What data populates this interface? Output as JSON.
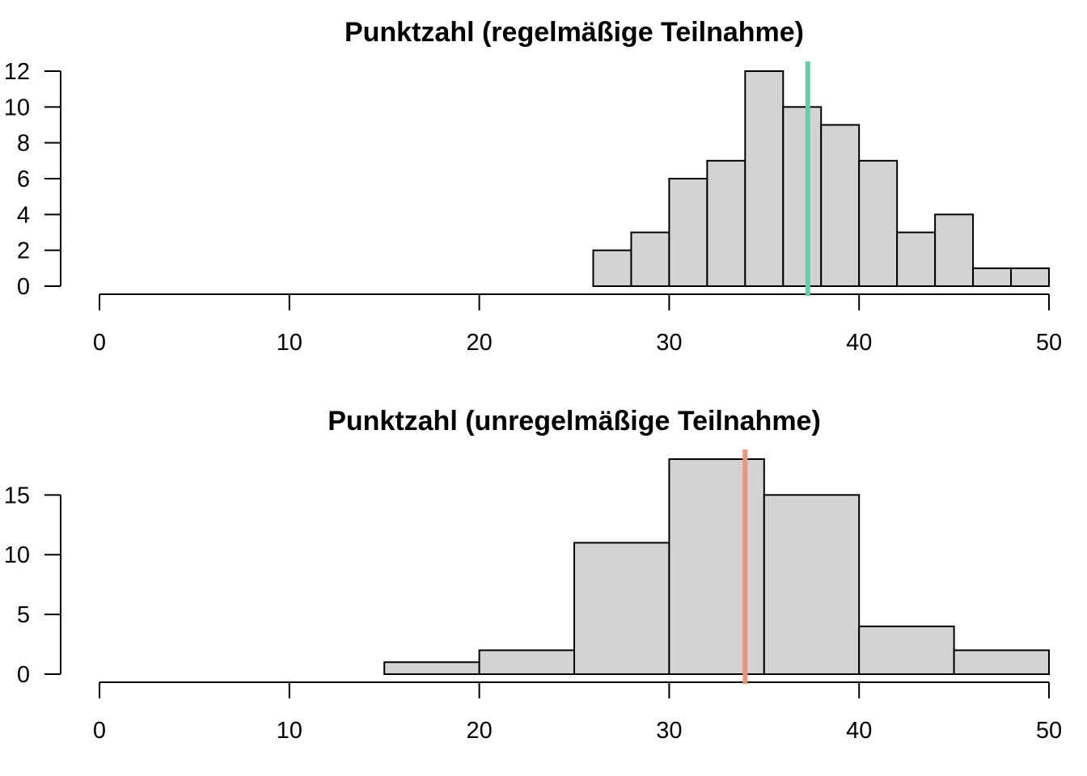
{
  "chart_data": [
    {
      "type": "histogram",
      "title": "Punktzahl (regelmäßige Teilnahme)",
      "xlim": [
        0,
        50
      ],
      "ylim": [
        0,
        12
      ],
      "x_ticks": [
        0,
        10,
        20,
        30,
        40,
        50
      ],
      "y_ticks": [
        0,
        2,
        4,
        6,
        8,
        10,
        12
      ],
      "bins": [
        {
          "start": 26,
          "end": 28,
          "count": 2
        },
        {
          "start": 28,
          "end": 30,
          "count": 3
        },
        {
          "start": 30,
          "end": 32,
          "count": 6
        },
        {
          "start": 32,
          "end": 34,
          "count": 7
        },
        {
          "start": 34,
          "end": 36,
          "count": 12
        },
        {
          "start": 36,
          "end": 38,
          "count": 10
        },
        {
          "start": 38,
          "end": 40,
          "count": 9
        },
        {
          "start": 40,
          "end": 42,
          "count": 7
        },
        {
          "start": 42,
          "end": 44,
          "count": 3
        },
        {
          "start": 44,
          "end": 46,
          "count": 4
        },
        {
          "start": 46,
          "end": 48,
          "count": 1
        },
        {
          "start": 48,
          "end": 50,
          "count": 1
        }
      ],
      "mean_line": {
        "x": 37.3,
        "color": "#66cdaa"
      },
      "bar_color": "#d3d3d3",
      "grid": false
    },
    {
      "type": "histogram",
      "title": "Punktzahl (unregelmäßige Teilnahme)",
      "xlim": [
        0,
        50
      ],
      "ylim": [
        0,
        18
      ],
      "x_ticks": [
        0,
        10,
        20,
        30,
        40,
        50
      ],
      "y_ticks": [
        0,
        5,
        10,
        15
      ],
      "bins": [
        {
          "start": 15,
          "end": 20,
          "count": 1
        },
        {
          "start": 20,
          "end": 25,
          "count": 2
        },
        {
          "start": 25,
          "end": 30,
          "count": 11
        },
        {
          "start": 30,
          "end": 35,
          "count": 18
        },
        {
          "start": 35,
          "end": 40,
          "count": 15
        },
        {
          "start": 40,
          "end": 45,
          "count": 4
        },
        {
          "start": 45,
          "end": 50,
          "count": 2
        }
      ],
      "mean_line": {
        "x": 34.0,
        "color": "#e9967a"
      },
      "bar_color": "#d3d3d3",
      "grid": false
    }
  ]
}
